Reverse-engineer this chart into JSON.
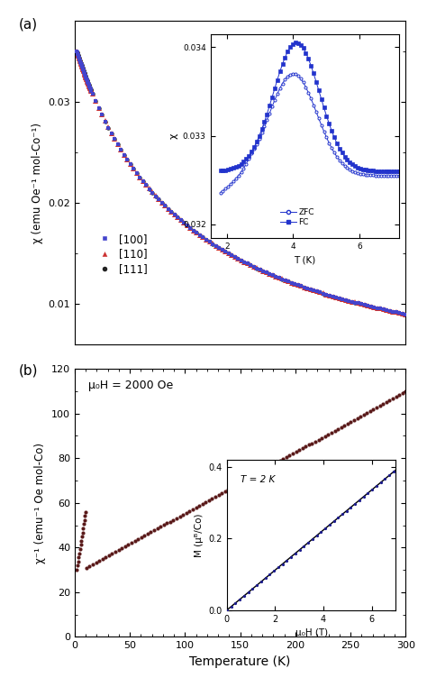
{
  "fig_width": 4.74,
  "fig_height": 7.72,
  "panel_a": {
    "ylim": [
      0.006,
      0.038
    ],
    "yticks": [
      0.01,
      0.02,
      0.03
    ],
    "ylabel": "χ (emu Oe⁻¹ mol-Co⁻¹)",
    "colors": {
      "100": "#4444cc",
      "110": "#cc3333",
      "111": "#222222"
    },
    "inset": {
      "ylim": [
        0.03185,
        0.03415
      ],
      "yticks": [
        0.032,
        0.033,
        0.034
      ],
      "xticks": [
        2,
        4,
        6
      ],
      "xlabel": "T (K)",
      "ylabel": "χ",
      "color": "#2233cc"
    }
  },
  "panel_b": {
    "ylim": [
      0,
      120
    ],
    "yticks": [
      0,
      20,
      40,
      60,
      80,
      100,
      120
    ],
    "ylabel": "χ⁻¹ (emu⁻¹ Oe mol-Co)",
    "xlabel": "Temperature (K)",
    "xticks": [
      0,
      50,
      100,
      150,
      200,
      250,
      300
    ],
    "annotation": "μ₀H = 2000 Oe",
    "dot_color": "#5a1a1a",
    "inset": {
      "ylim": [
        0.0,
        0.42
      ],
      "yticks": [
        0.0,
        0.2,
        0.4
      ],
      "xticks": [
        0,
        2,
        4,
        6
      ],
      "xlabel": "μ₀H (T)",
      "ylabel": "M (μᴮ/Co)",
      "annotation": "T = 2 K",
      "slope": 0.056
    }
  }
}
